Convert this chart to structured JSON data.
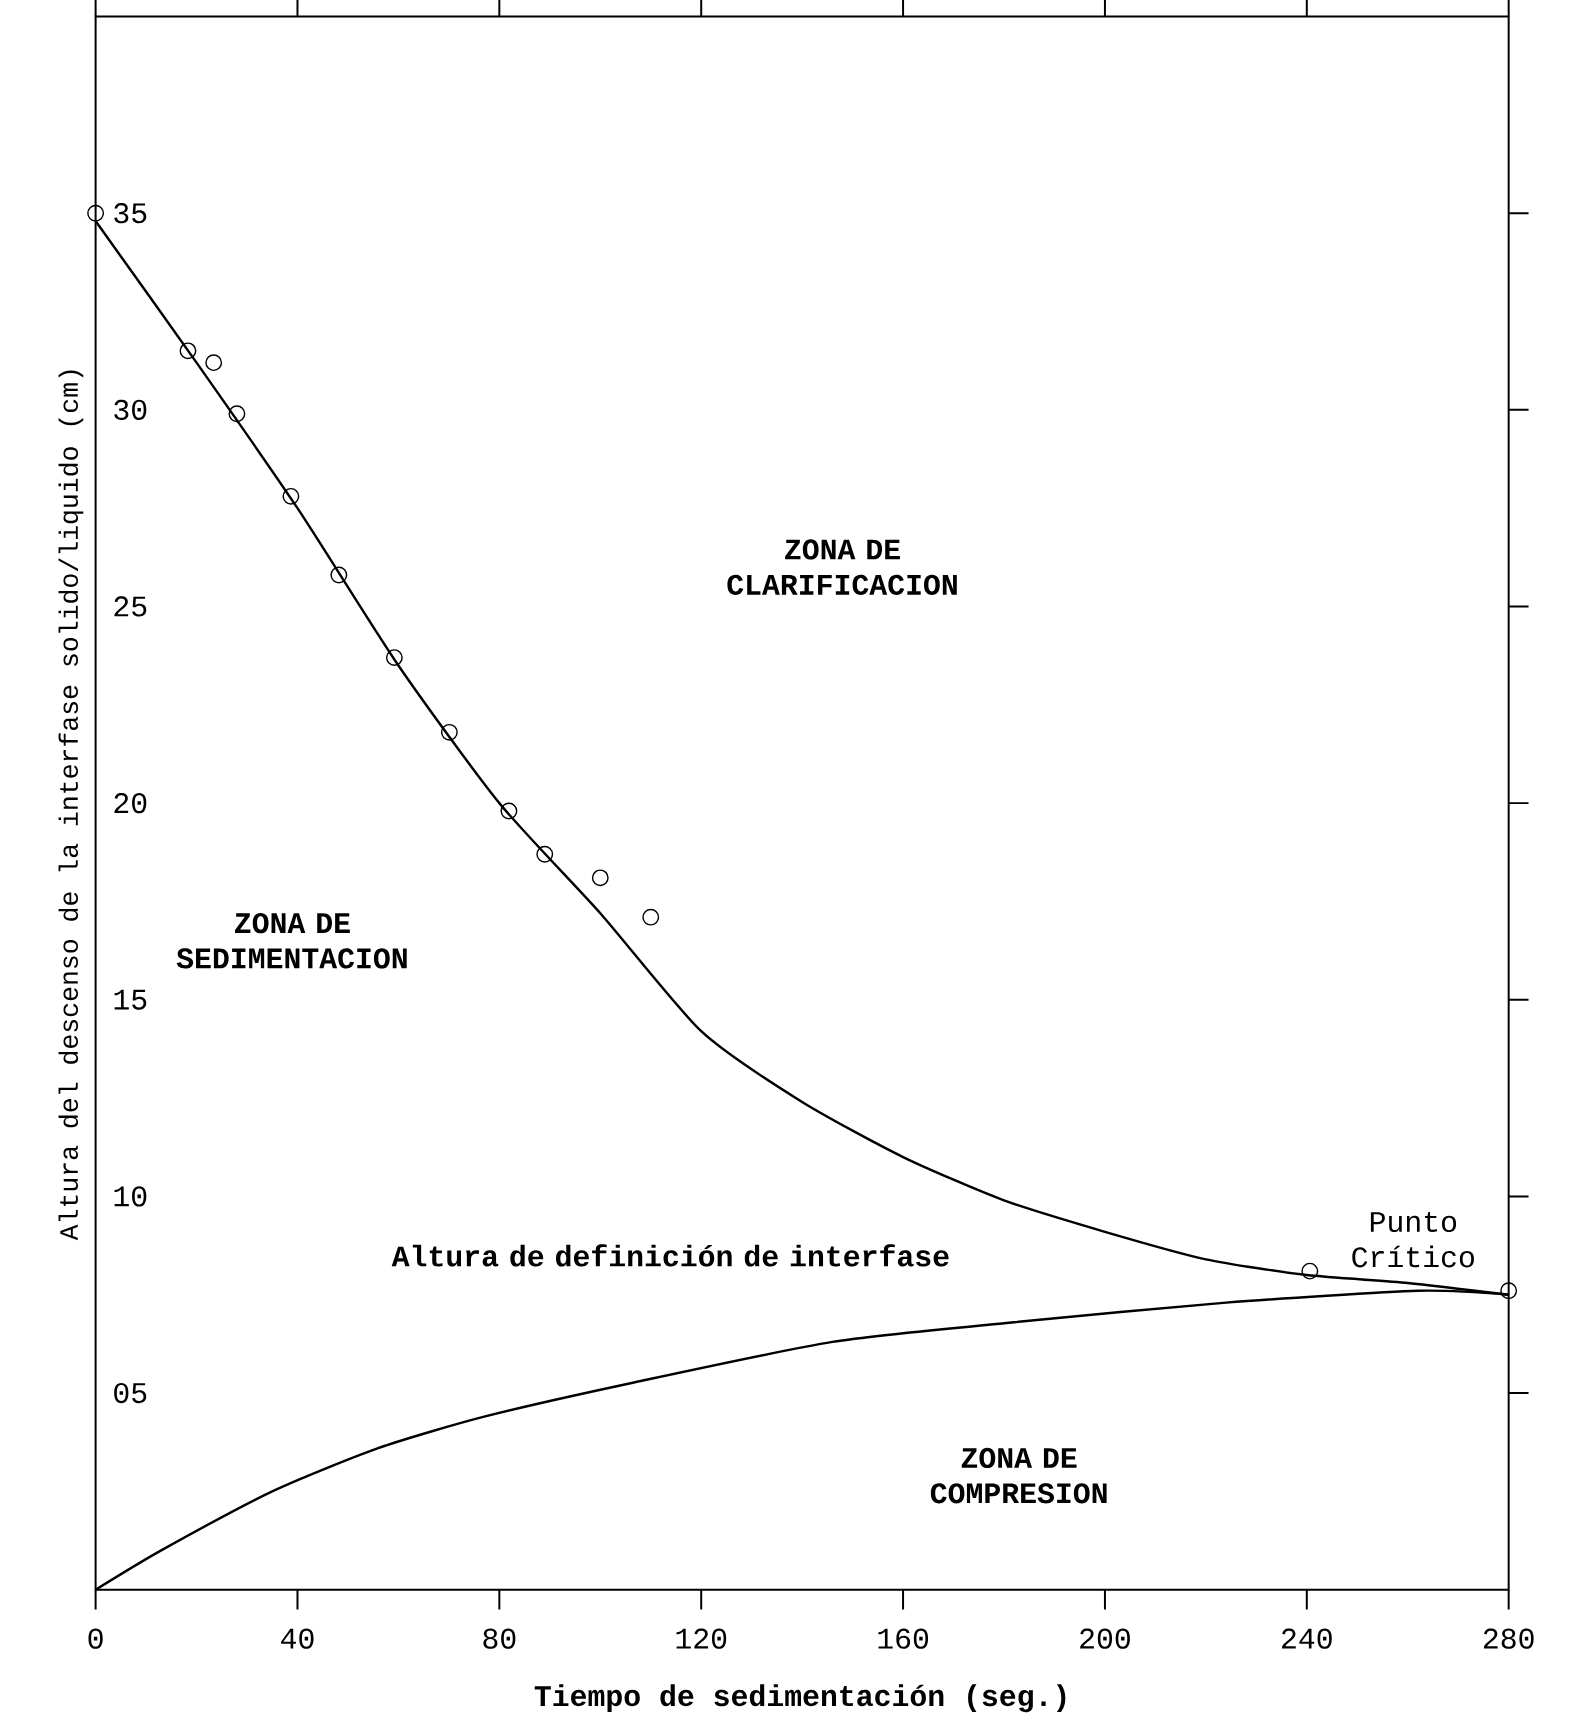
{
  "chart_data": {
    "type": "line",
    "xlabel": "Tiempo de sedimentación (seg.)",
    "ylabel": "Altura del descenso de la interfase solido/liquido (cm)",
    "xlim": [
      0,
      280
    ],
    "ylim": [
      0,
      40
    ],
    "xticks": [
      0,
      40,
      80,
      120,
      160,
      200,
      240,
      280
    ],
    "yticks": [
      {
        "value": 5,
        "label": "05"
      },
      10,
      15,
      20,
      25,
      30,
      35
    ],
    "grid": false,
    "series": [
      {
        "type": "scatter",
        "color": "#000000",
        "marker": "circle",
        "x": [
          0,
          18.3,
          23.4,
          28,
          38.7,
          48.2,
          59.2,
          70.1,
          81.9,
          89,
          100,
          110,
          240.6,
          280
        ],
        "values": [
          35.0,
          31.5,
          31.2,
          29.9,
          27.8,
          25.8,
          23.7,
          21.8,
          19.8,
          18.7,
          18.1,
          17.1,
          8.1,
          7.6
        ]
      },
      {
        "color": "#000000",
        "line_style": "solid",
        "x": [
          0,
          20,
          40,
          60,
          80,
          100,
          120,
          140,
          160,
          180,
          200,
          220,
          240,
          260,
          280
        ],
        "values": [
          34.8,
          31.2,
          27.5,
          23.5,
          20.0,
          17.2,
          14.2,
          12.4,
          11.0,
          9.9,
          9.1,
          8.4,
          8.0,
          7.8,
          7.5
        ]
      },
      {
        "color": "#000000",
        "line_style": "solid",
        "x": [
          0,
          13,
          35,
          56,
          77,
          106,
          146,
          182,
          224,
          262,
          280
        ],
        "values": [
          0,
          1.0,
          2.5,
          3.6,
          4.4,
          5.25,
          6.3,
          6.8,
          7.3,
          7.6,
          7.5
        ]
      }
    ],
    "annotations": [
      "ZONA DE CLARIFICACION",
      "ZONA DE SEDIMENTACION",
      "Altura de definición de interfase",
      "ZONA DE COMPRESION",
      {
        "text": "Punto Crítico",
        "x": 280,
        "y": 7.6
      }
    ]
  }
}
